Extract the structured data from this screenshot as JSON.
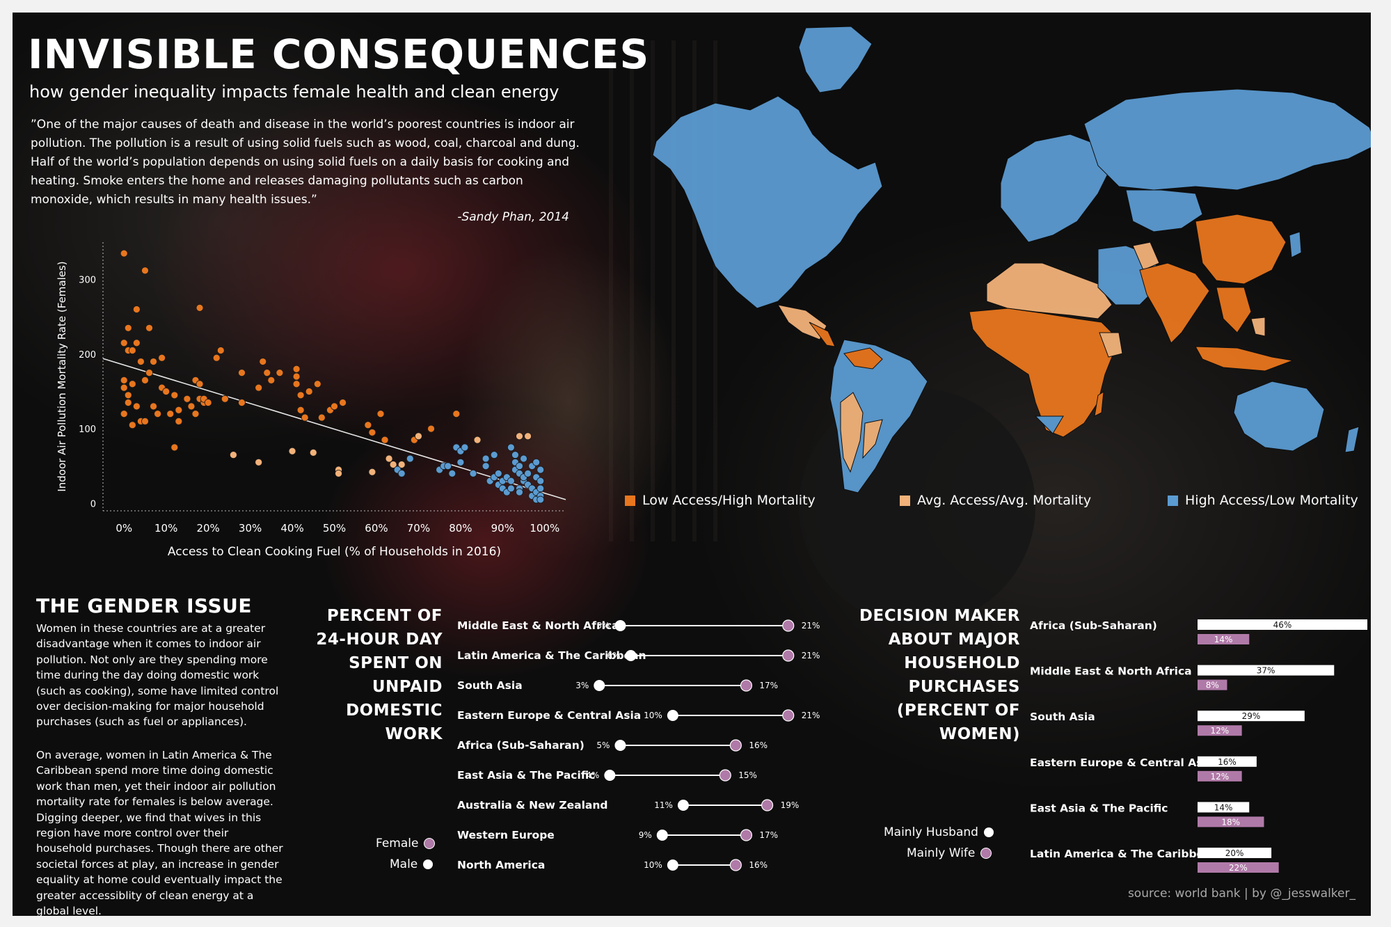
{
  "header": {
    "title": "INVISIBLE CONSEQUENCES",
    "subtitle": "how gender inequality impacts female health and clean energy",
    "quote": "”One of the major causes of death and disease in the world’s poorest countries is indoor air pollution. The pollution is a result of using solid fuels such as wood, coal, charcoal and dung. Half of the world’s population depends on using solid fuels on a daily basis for cooking and heating. Smoke enters the home and releases damaging pollutants such as carbon monoxide, which results in many health issues.”",
    "quote_attribution": "-Sandy Phan, 2014"
  },
  "colors": {
    "low_access": "#e8761e",
    "avg_access": "#f2b27a",
    "high_access": "#5b9bd1",
    "female": "#b07aa8",
    "male": "#ffffff"
  },
  "map_legend": {
    "low": "Low Access/High Mortality",
    "avg": "Avg. Access/Avg. Mortality",
    "high": "High Access/Low Mortality"
  },
  "gender_issue": {
    "title": "THE GENDER ISSUE",
    "p1": "Women in these countries are at a greater disadvantage when it comes to indoor air pollution. Not only are they spending more time during the day doing domestic work (such as cooking), some have limited control over decision-making for major household purchases (such as fuel or appliances).",
    "p2": "On average, women in Latin America & The Caribbean spend more time doing domestic work than men, yet their indoor air pollution mortality rate for females is below average. Digging deeper, we find that wives in this region have more control over their household purchases. Though there are other societal forces at play, an increase in gender equality at home could eventually impact the greater accessiblity of clean energy at a global level."
  },
  "unpaid_work": {
    "title_lines": [
      "PERCENT OF",
      "24-HOUR DAY",
      "SPENT ON",
      "UNPAID",
      "DOMESTIC",
      "WORK"
    ],
    "legend_female": "Female",
    "legend_male": "Male"
  },
  "decision": {
    "title_lines": [
      "DECISION MAKER",
      "ABOUT MAJOR",
      "HOUSEHOLD",
      "PURCHASES",
      "(PERCENT OF",
      "WOMEN)"
    ],
    "legend_husband": "Mainly Husband",
    "legend_wife": "Mainly Wife"
  },
  "source": "source: world bank | by @_jesswalker_",
  "chart_data": [
    {
      "type": "scatter",
      "xlabel": "Access to Clean Cooking Fuel (% of Households in 2016)",
      "ylabel": "Indoor Air Pollution Mortality Rate (Females)",
      "xlim": [
        -5,
        105
      ],
      "ylim": [
        -10,
        350
      ],
      "x_ticks": [
        0,
        10,
        20,
        30,
        40,
        50,
        60,
        70,
        80,
        90,
        100
      ],
      "x_tick_labels": [
        "0%",
        "10%",
        "20%",
        "30%",
        "40%",
        "50%",
        "60%",
        "70%",
        "80%",
        "90%",
        "100%"
      ],
      "y_ticks": [
        0,
        100,
        200,
        300
      ],
      "trend_line": {
        "x": [
          -5,
          105
        ],
        "y": [
          194,
          5
        ]
      },
      "series": [
        {
          "name": "Low Access/High Mortality",
          "points": [
            [
              0,
              335
            ],
            [
              5,
              312
            ],
            [
              1,
              235
            ],
            [
              3,
              260
            ],
            [
              0,
              215
            ],
            [
              1,
              205
            ],
            [
              2,
              205
            ],
            [
              3,
              215
            ],
            [
              4,
              190
            ],
            [
              6,
              235
            ],
            [
              0,
              165
            ],
            [
              0,
              155
            ],
            [
              1,
              145
            ],
            [
              2,
              160
            ],
            [
              5,
              165
            ],
            [
              6,
              175
            ],
            [
              7,
              190
            ],
            [
              9,
              195
            ],
            [
              0,
              120
            ],
            [
              1,
              135
            ],
            [
              2,
              105
            ],
            [
              3,
              130
            ],
            [
              4,
              110
            ],
            [
              5,
              110
            ],
            [
              7,
              130
            ],
            [
              8,
              120
            ],
            [
              9,
              155
            ],
            [
              10,
              150
            ],
            [
              11,
              120
            ],
            [
              12,
              145
            ],
            [
              13,
              125
            ],
            [
              13,
              110
            ],
            [
              15,
              140
            ],
            [
              16,
              130
            ],
            [
              17,
              165
            ],
            [
              17,
              120
            ],
            [
              18,
              160
            ],
            [
              18,
              140
            ],
            [
              19,
              135
            ],
            [
              19,
              140
            ],
            [
              20,
              135
            ],
            [
              12,
              75
            ],
            [
              18,
              262
            ],
            [
              22,
              195
            ],
            [
              23,
              205
            ],
            [
              24,
              140
            ],
            [
              28,
              175
            ],
            [
              28,
              135
            ],
            [
              32,
              155
            ],
            [
              33,
              190
            ],
            [
              34,
              175
            ],
            [
              35,
              165
            ],
            [
              37,
              175
            ],
            [
              41,
              180
            ],
            [
              41,
              170
            ],
            [
              41,
              160
            ],
            [
              42,
              145
            ],
            [
              42,
              125
            ],
            [
              43,
              115
            ],
            [
              44,
              150
            ],
            [
              44,
              150
            ],
            [
              46,
              160
            ],
            [
              47,
              115
            ],
            [
              49,
              125
            ],
            [
              50,
              130
            ],
            [
              52,
              135
            ],
            [
              58,
              105
            ],
            [
              59,
              95
            ],
            [
              61,
              120
            ],
            [
              62,
              85
            ],
            [
              69,
              85
            ],
            [
              73,
              100
            ],
            [
              79,
              120
            ]
          ]
        },
        {
          "name": "Avg. Access/Avg. Mortality",
          "points": [
            [
              26,
              65
            ],
            [
              32,
              55
            ],
            [
              40,
              70
            ],
            [
              45,
              68
            ],
            [
              51,
              45
            ],
            [
              51,
              40
            ],
            [
              59,
              42
            ],
            [
              63,
              60
            ],
            [
              64,
              52
            ],
            [
              66,
              52
            ],
            [
              70,
              90
            ],
            [
              84,
              85
            ],
            [
              94,
              90
            ],
            [
              96,
              90
            ]
          ]
        },
        {
          "name": "High Access/Low Mortality",
          "points": [
            [
              65,
              45
            ],
            [
              66,
              40
            ],
            [
              68,
              60
            ],
            [
              75,
              45
            ],
            [
              76,
              50
            ],
            [
              77,
              50
            ],
            [
              78,
              40
            ],
            [
              79,
              75
            ],
            [
              80,
              70
            ],
            [
              80,
              55
            ],
            [
              81,
              75
            ],
            [
              83,
              40
            ],
            [
              86,
              50
            ],
            [
              86,
              60
            ],
            [
              88,
              65
            ],
            [
              87,
              30
            ],
            [
              88,
              35
            ],
            [
              89,
              40
            ],
            [
              89,
              25
            ],
            [
              90,
              30
            ],
            [
              90,
              20
            ],
            [
              91,
              35
            ],
            [
              91,
              15
            ],
            [
              92,
              20
            ],
            [
              92,
              30
            ],
            [
              92,
              75
            ],
            [
              93,
              45
            ],
            [
              93,
              65
            ],
            [
              93,
              55
            ],
            [
              94,
              50
            ],
            [
              94,
              40
            ],
            [
              94,
              20
            ],
            [
              94,
              15
            ],
            [
              95,
              30
            ],
            [
              95,
              35
            ],
            [
              95,
              60
            ],
            [
              96,
              40
            ],
            [
              96,
              25
            ],
            [
              97,
              50
            ],
            [
              97,
              20
            ],
            [
              97,
              10
            ],
            [
              98,
              55
            ],
            [
              98,
              35
            ],
            [
              98,
              15
            ],
            [
              98,
              5
            ],
            [
              99,
              30
            ],
            [
              99,
              45
            ],
            [
              99,
              20
            ],
            [
              99,
              10
            ],
            [
              99,
              5
            ]
          ]
        }
      ]
    },
    {
      "type": "dumbbell",
      "title": "PERCENT OF 24-HOUR DAY SPENT ON UNPAID DOMESTIC WORK",
      "categories": [
        "Middle East & North Africa",
        "Latin America & The Caribbean",
        "South Asia",
        "Eastern Europe & Central Asia",
        "Africa (Sub-Saharan)",
        "East Asia & The Pacific",
        "Australia & New Zealand",
        "Western Europe",
        "North America"
      ],
      "series": [
        {
          "name": "Male",
          "values": [
            5,
            6,
            3,
            10,
            5,
            4,
            11,
            9,
            10
          ]
        },
        {
          "name": "Female",
          "values": [
            21,
            21,
            17,
            21,
            16,
            15,
            19,
            17,
            16
          ]
        }
      ]
    },
    {
      "type": "bar",
      "title": "DECISION MAKER ABOUT MAJOR HOUSEHOLD PURCHASES (PERCENT OF WOMEN)",
      "categories": [
        "Africa (Sub-Saharan)",
        "Middle East & North Africa",
        "South Asia",
        "Eastern Europe & Central Asia",
        "East Asia & The Pacific",
        "Latin America & The Caribbean"
      ],
      "series": [
        {
          "name": "Mainly Husband",
          "values": [
            46,
            37,
            29,
            16,
            14,
            20
          ]
        },
        {
          "name": "Mainly Wife",
          "values": [
            14,
            8,
            12,
            12,
            18,
            22
          ]
        }
      ]
    }
  ]
}
